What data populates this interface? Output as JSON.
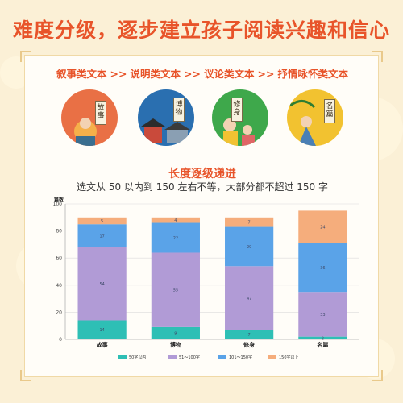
{
  "headline": "难度分级，逐步建立孩子阅读兴趣和信心",
  "text_types": [
    "叙事类文本",
    "说明类文本",
    "议论类文本",
    "抒情咏怀类文本"
  ],
  "separator": ">>",
  "book_labels": [
    "故事",
    "博物",
    "修身",
    "名篇"
  ],
  "colors": {
    "accent": "#e8542a",
    "teal": "#2ebfb5",
    "purple": "#b19bd6",
    "blue": "#5aa3e8",
    "orange": "#f5ad7c"
  },
  "chart_data": {
    "type": "bar",
    "stacked": true,
    "title": "长度逐级递进",
    "subtitle": "选文从 50 以内到 150 左右不等，大部分都不超过 150 字",
    "ylabel": "篇数",
    "ylim": [
      0,
      100
    ],
    "yticks": [
      0,
      20,
      40,
      60,
      80,
      100
    ],
    "grid": true,
    "legend": "bottom",
    "categories": [
      "故事",
      "博物",
      "修身",
      "名篇"
    ],
    "series": [
      {
        "name": "50字以内",
        "color": "#2ebfb5",
        "values": [
          14,
          9,
          7,
          2
        ]
      },
      {
        "name": "51～100字",
        "color": "#b19bd6",
        "values": [
          54,
          55,
          47,
          33
        ]
      },
      {
        "name": "101～150字",
        "color": "#5aa3e8",
        "values": [
          17,
          22,
          29,
          36
        ]
      },
      {
        "name": "150字以上",
        "color": "#f5ad7c",
        "values": [
          5,
          4,
          7,
          24
        ]
      }
    ]
  }
}
